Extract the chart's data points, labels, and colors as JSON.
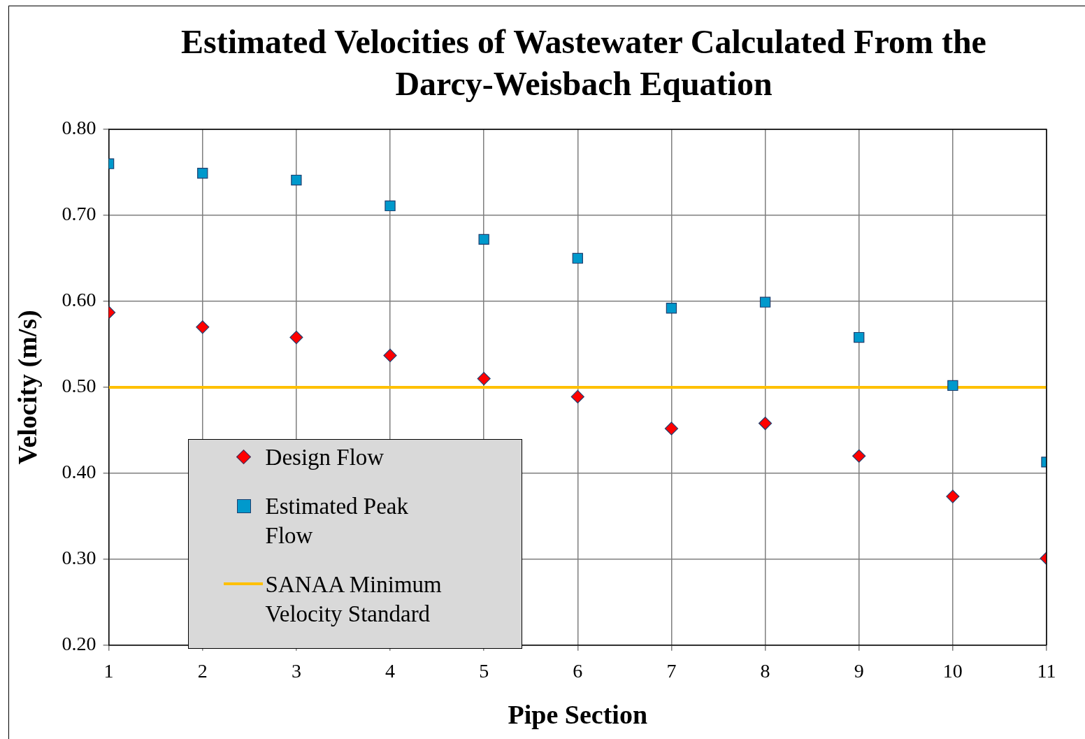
{
  "chart_data": {
    "type": "scatter",
    "title": "Estimated Velocities of Wastewater Calculated From the Darcy-Weisbach Equation",
    "xlabel": "Pipe Section",
    "ylabel": "Velocity (m/s)",
    "x": [
      1,
      2,
      3,
      4,
      5,
      6,
      7,
      8,
      9,
      10,
      11
    ],
    "series": [
      {
        "name": "Design Flow",
        "color": "#ff0000",
        "marker": "diamond",
        "values": [
          0.587,
          0.57,
          0.558,
          0.537,
          0.51,
          0.489,
          0.452,
          0.458,
          0.42,
          0.373,
          0.301
        ]
      },
      {
        "name": "Estimated Peak Flow",
        "color": "#0099cc",
        "marker": "square",
        "values": [
          0.76,
          0.749,
          0.741,
          0.711,
          0.672,
          0.65,
          0.592,
          0.599,
          0.558,
          0.502,
          0.413
        ]
      }
    ],
    "ref_lines": [
      {
        "axis": "y",
        "value": 0.5,
        "label": "SANAA Minimum Velocity Standard",
        "color": "#ffc000",
        "line_style": "solid"
      }
    ],
    "xlim": [
      1,
      11
    ],
    "xticks": [
      1,
      2,
      3,
      4,
      5,
      6,
      7,
      8,
      9,
      10,
      11
    ],
    "ylim": [
      0.2,
      0.8
    ],
    "yticks": [
      {
        "value": 0.2,
        "label": "0.20"
      },
      {
        "value": 0.3,
        "label": "0.30"
      },
      {
        "value": 0.4,
        "label": "0.40"
      },
      {
        "value": 0.5,
        "label": "0.50"
      },
      {
        "value": 0.6,
        "label": "0.60"
      },
      {
        "value": 0.7,
        "label": "0.70"
      },
      {
        "value": 0.8,
        "label": "0.80"
      }
    ],
    "grid": true,
    "legend": "bottom left"
  }
}
